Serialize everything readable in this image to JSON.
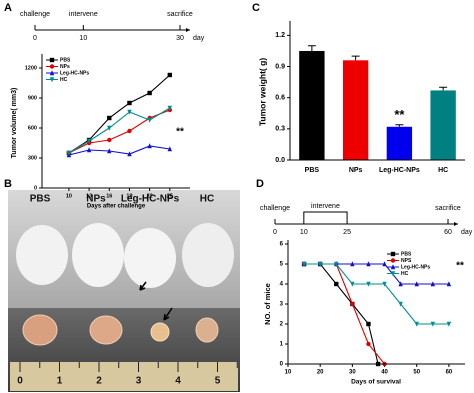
{
  "panel_labels": [
    "A",
    "B",
    "C",
    "D"
  ],
  "timelines": [
    {
      "events": [
        "challenge",
        "intervene",
        "sacrifice"
      ],
      "ticks": [
        0,
        10,
        30
      ],
      "unit": "day"
    },
    {
      "events": [
        "challenge",
        "intervene",
        "sacrifice"
      ],
      "ticks": [
        0,
        10,
        25,
        60
      ],
      "unit": "day"
    }
  ],
  "photo": {
    "groups": [
      "PBS",
      "NPs",
      "Leg-HC-NPs",
      "HC"
    ],
    "ruler": [
      0,
      1,
      2,
      3,
      4,
      5
    ]
  },
  "chart_data": [
    {
      "type": "line",
      "xlabel": "Days after challenge",
      "ylabel": "Tumor volume( mm3)",
      "annotation": "**",
      "x": [
        10,
        13,
        16,
        19,
        22,
        25
      ],
      "xlim": [
        6,
        28
      ],
      "xticks": [
        10,
        13,
        16,
        19,
        22,
        25
      ],
      "ylim": [
        0,
        1300
      ],
      "yticks": [
        0,
        300,
        600,
        900,
        1200
      ],
      "legend": "upper left",
      "series": [
        {
          "name": "PBS",
          "color": "#000000",
          "marker": "square",
          "values": [
            350,
            480,
            700,
            850,
            950,
            1130
          ]
        },
        {
          "name": "NPs",
          "color": "#e00000",
          "marker": "circle",
          "values": [
            350,
            450,
            480,
            570,
            700,
            780
          ]
        },
        {
          "name": "Leg-HC-NPs",
          "color": "#1010d0",
          "marker": "triangle",
          "values": [
            330,
            380,
            370,
            340,
            420,
            390
          ]
        },
        {
          "name": "HC",
          "color": "#008b8b",
          "marker": "down",
          "values": [
            350,
            470,
            600,
            760,
            680,
            800
          ]
        }
      ]
    },
    {
      "type": "bar",
      "ylabel": "Tumor weight( g)",
      "annotation": "**",
      "categories": [
        "PBS",
        "NPs",
        "Leg-HC-NPs",
        "HC"
      ],
      "values": [
        1.05,
        0.96,
        0.32,
        0.67
      ],
      "errors": [
        0.05,
        0.04,
        0.02,
        0.03
      ],
      "colors": [
        "#000000",
        "#ee0000",
        "#0000ee",
        "#008080"
      ],
      "ylim": [
        0,
        1.3
      ],
      "yticks": [
        {
          "value": 0,
          "label": "0.0"
        },
        0.3,
        0.6,
        0.9,
        1.2
      ]
    },
    {
      "type": "line",
      "xlabel": "Days of survival",
      "ylabel": "NO. of mice",
      "annotation": "**",
      "xlim": [
        10,
        65
      ],
      "xticks": [
        10,
        20,
        30,
        40,
        50,
        60
      ],
      "ylim": [
        0,
        6
      ],
      "yticks": [
        0,
        1,
        2,
        3,
        4,
        5,
        6
      ],
      "legend": "upper right",
      "series": [
        {
          "name": "PBS",
          "color": "#000000",
          "marker": "square",
          "x": [
            15,
            20,
            25,
            30,
            35,
            38
          ],
          "values": [
            5,
            5,
            4,
            3,
            2,
            0
          ]
        },
        {
          "name": "NPS",
          "color": "#e00000",
          "marker": "circle",
          "x": [
            15,
            20,
            25,
            30,
            35,
            40
          ],
          "values": [
            5,
            5,
            5,
            3,
            1,
            0
          ]
        },
        {
          "name": "Leg-HC-NPs",
          "color": "#1010d0",
          "marker": "triangle",
          "x": [
            15,
            20,
            25,
            30,
            35,
            40,
            45,
            50,
            55,
            60
          ],
          "values": [
            5,
            5,
            5,
            5,
            5,
            5,
            4,
            4,
            4,
            4
          ]
        },
        {
          "name": "HC",
          "color": "#009090",
          "marker": "down",
          "x": [
            15,
            20,
            25,
            30,
            35,
            40,
            45,
            50,
            55,
            60
          ],
          "values": [
            5,
            5,
            5,
            4,
            4,
            4,
            3,
            2,
            2,
            2
          ]
        }
      ]
    }
  ]
}
